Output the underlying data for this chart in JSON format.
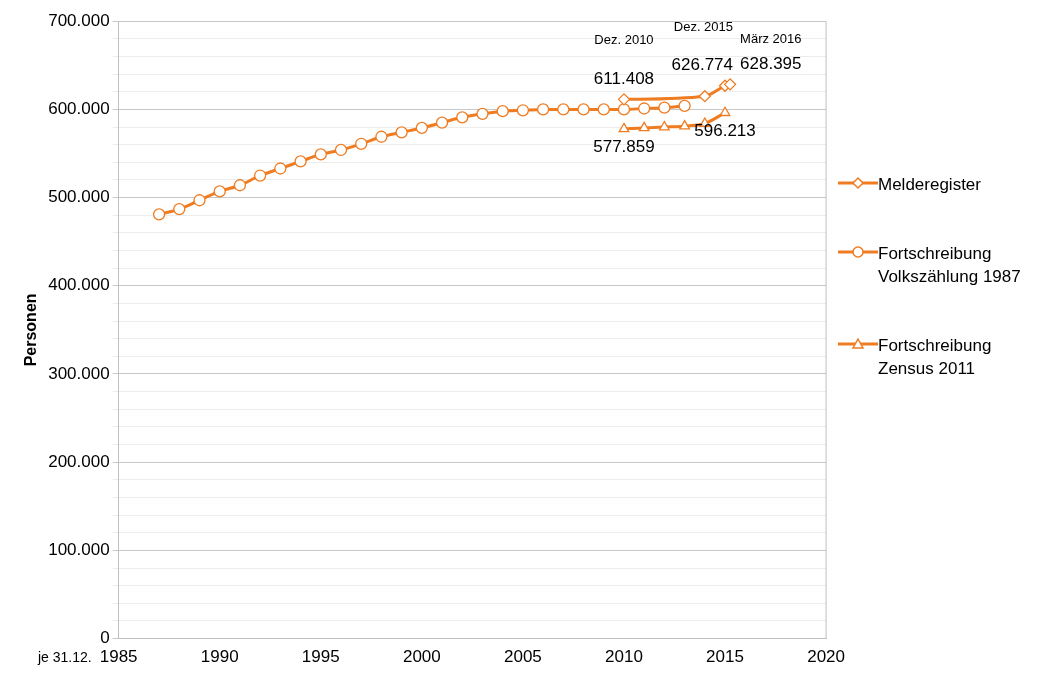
{
  "chart_data": {
    "type": "line",
    "xlabel": "je 31.12.",
    "ylabel": "Personen",
    "xlim": [
      1985,
      2020
    ],
    "xticks": [
      1985,
      1990,
      1995,
      2000,
      2005,
      2010,
      2015,
      2020
    ],
    "ylim": [
      0,
      700000
    ],
    "yticks": [
      {
        "value": 0,
        "label": "0"
      },
      {
        "value": 20000,
        "label": null
      },
      {
        "value": 40000,
        "label": null
      },
      {
        "value": 60000,
        "label": null
      },
      {
        "value": 80000,
        "label": null
      },
      {
        "value": 100000,
        "label": "100.000"
      },
      {
        "value": 120000,
        "label": null
      },
      {
        "value": 140000,
        "label": null
      },
      {
        "value": 160000,
        "label": null
      },
      {
        "value": 180000,
        "label": null
      },
      {
        "value": 200000,
        "label": "200.000"
      },
      {
        "value": 220000,
        "label": null
      },
      {
        "value": 240000,
        "label": null
      },
      {
        "value": 260000,
        "label": null
      },
      {
        "value": 280000,
        "label": null
      },
      {
        "value": 300000,
        "label": "300.000"
      },
      {
        "value": 320000,
        "label": null
      },
      {
        "value": 340000,
        "label": null
      },
      {
        "value": 360000,
        "label": null
      },
      {
        "value": 380000,
        "label": null
      },
      {
        "value": 400000,
        "label": "400.000"
      },
      {
        "value": 420000,
        "label": null
      },
      {
        "value": 440000,
        "label": null
      },
      {
        "value": 460000,
        "label": null
      },
      {
        "value": 480000,
        "label": null
      },
      {
        "value": 500000,
        "label": "500.000"
      },
      {
        "value": 520000,
        "label": null
      },
      {
        "value": 540000,
        "label": null
      },
      {
        "value": 560000,
        "label": null
      },
      {
        "value": 580000,
        "label": null
      },
      {
        "value": 600000,
        "label": "600.000"
      },
      {
        "value": 620000,
        "label": null
      },
      {
        "value": 640000,
        "label": null
      },
      {
        "value": 660000,
        "label": null
      },
      {
        "value": 680000,
        "label": null
      },
      {
        "value": 700000,
        "label": "700.000"
      }
    ],
    "grid": "y",
    "legend": "right",
    "line_style": "solid",
    "series": [
      {
        "name": "Melderegister",
        "color": "#f07c22",
        "marker": "diamond",
        "x": [
          2010,
          2014,
          2015,
          2015.25
        ],
        "values": [
          611408,
          615000,
          626774,
          628395
        ],
        "value_labels": [
          "611.408",
          null,
          "626.774",
          "628.395"
        ]
      },
      {
        "name": "Fortschreibung Volkszählung 1987",
        "color": "#f07c22",
        "marker": "circle",
        "x": [
          1987,
          1988,
          1989,
          1990,
          1991,
          1992,
          1993,
          1994,
          1995,
          1996,
          1997,
          1998,
          1999,
          2000,
          2001,
          2002,
          2003,
          2004,
          2005,
          2006,
          2007,
          2008,
          2009,
          2010,
          2011,
          2012,
          2013
        ],
        "values": [
          481000,
          487000,
          497000,
          507000,
          514000,
          525000,
          533000,
          541000,
          549000,
          554000,
          561000,
          569000,
          574000,
          579000,
          585000,
          591000,
          595000,
          598000,
          599000,
          600000,
          600000,
          600000,
          600000,
          600000,
          601000,
          602000,
          604000
        ]
      },
      {
        "name": "Fortschreibung Zensus 2011",
        "color": "#f07c22",
        "marker": "triangle",
        "x": [
          2010,
          2011,
          2012,
          2013,
          2014,
          2015
        ],
        "values": [
          577859,
          579000,
          580000,
          581000,
          584000,
          596213
        ],
        "value_labels": [
          "577.859",
          null,
          null,
          null,
          null,
          "596.213"
        ]
      }
    ],
    "annotations": [
      "Dez. 2010",
      "Dez. 2015",
      "März 2016"
    ]
  }
}
